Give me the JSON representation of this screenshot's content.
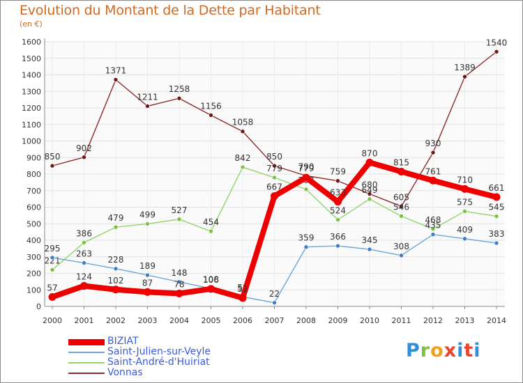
{
  "title": "Evolution du Montant de la Dette par Habitant",
  "subtitle": "(en €)",
  "logo": {
    "text": "Proxiti",
    "colors": [
      "#2f8fd8",
      "#7cc142",
      "#f0a020",
      "#e8452c",
      "#2f8fd8",
      "#e8452c",
      "#2f8fd8"
    ]
  },
  "chart_data": {
    "type": "line",
    "x": [
      "2000",
      "2001",
      "2002",
      "2003",
      "2004",
      "2005",
      "2006",
      "2007",
      "2008",
      "2009",
      "2010",
      "2011",
      "2012",
      "2013",
      "2014"
    ],
    "yticks": [
      "0",
      "100",
      "200",
      "300",
      "400",
      "500",
      "600",
      "700",
      "800",
      "900",
      "1000",
      "1100",
      "1200",
      "1300",
      "1400",
      "1500",
      "1600"
    ],
    "ylim": [
      0,
      1600
    ],
    "grid": true,
    "legend_position": "bottom-left",
    "series": [
      {
        "name": "Vonnas",
        "color": "#8b2a2a",
        "marker": "#6b1818",
        "values": [
          850,
          902,
          1371,
          1211,
          1258,
          1156,
          1058,
          850,
          790,
          759,
          680,
          605,
          930,
          1389,
          1540
        ],
        "labels": [
          "850",
          "902",
          "1371",
          "1211",
          "1258",
          "1156",
          "1058",
          "850",
          "790",
          "759",
          "680",
          "605",
          "930",
          "1389",
          "1540"
        ]
      },
      {
        "name": "Saint-André-d'Huiriat",
        "color": "#92d46a",
        "marker": "#7cc142",
        "values": [
          221,
          386,
          479,
          499,
          527,
          454,
          842,
          779,
          708,
          524,
          649,
          546,
          468,
          575,
          545
        ],
        "labels": [
          "221",
          "386",
          "479",
          "499",
          "527",
          "454",
          "842",
          "779",
          "708",
          "524",
          "649",
          "546",
          "468",
          "575",
          "545"
        ]
      },
      {
        "name": "Saint-Julien-sur-Veyle",
        "color": "#6aa6d8",
        "marker": "#3d7ec2",
        "values": [
          295,
          263,
          228,
          189,
          148,
          108,
          58,
          22,
          359,
          366,
          345,
          308,
          435,
          409,
          383
        ],
        "labels": [
          "295",
          "263",
          "228",
          "189",
          "148",
          "108",
          "58",
          "22",
          "359",
          "366",
          "345",
          "308",
          "435",
          "409",
          "383"
        ]
      },
      {
        "name": "BIZIAT",
        "color": "#ee0000",
        "marker": "#ee0000",
        "values": [
          57,
          124,
          102,
          87,
          78,
          106,
          51,
          667,
          779,
          633,
          870,
          815,
          761,
          710,
          661
        ],
        "labels": [
          "57",
          "124",
          "102",
          "87",
          "78",
          "106",
          "51",
          "667",
          "779",
          "633",
          "870",
          "815",
          "761",
          "710",
          "661"
        ]
      }
    ],
    "legend": [
      {
        "name": "BIZIAT",
        "color": "#ee0000"
      },
      {
        "name": "Saint-Julien-sur-Veyle",
        "color": "#6aa6d8"
      },
      {
        "name": "Saint-André-d'Huiriat",
        "color": "#92d46a"
      },
      {
        "name": "Vonnas",
        "color": "#8b2a2a"
      }
    ]
  }
}
